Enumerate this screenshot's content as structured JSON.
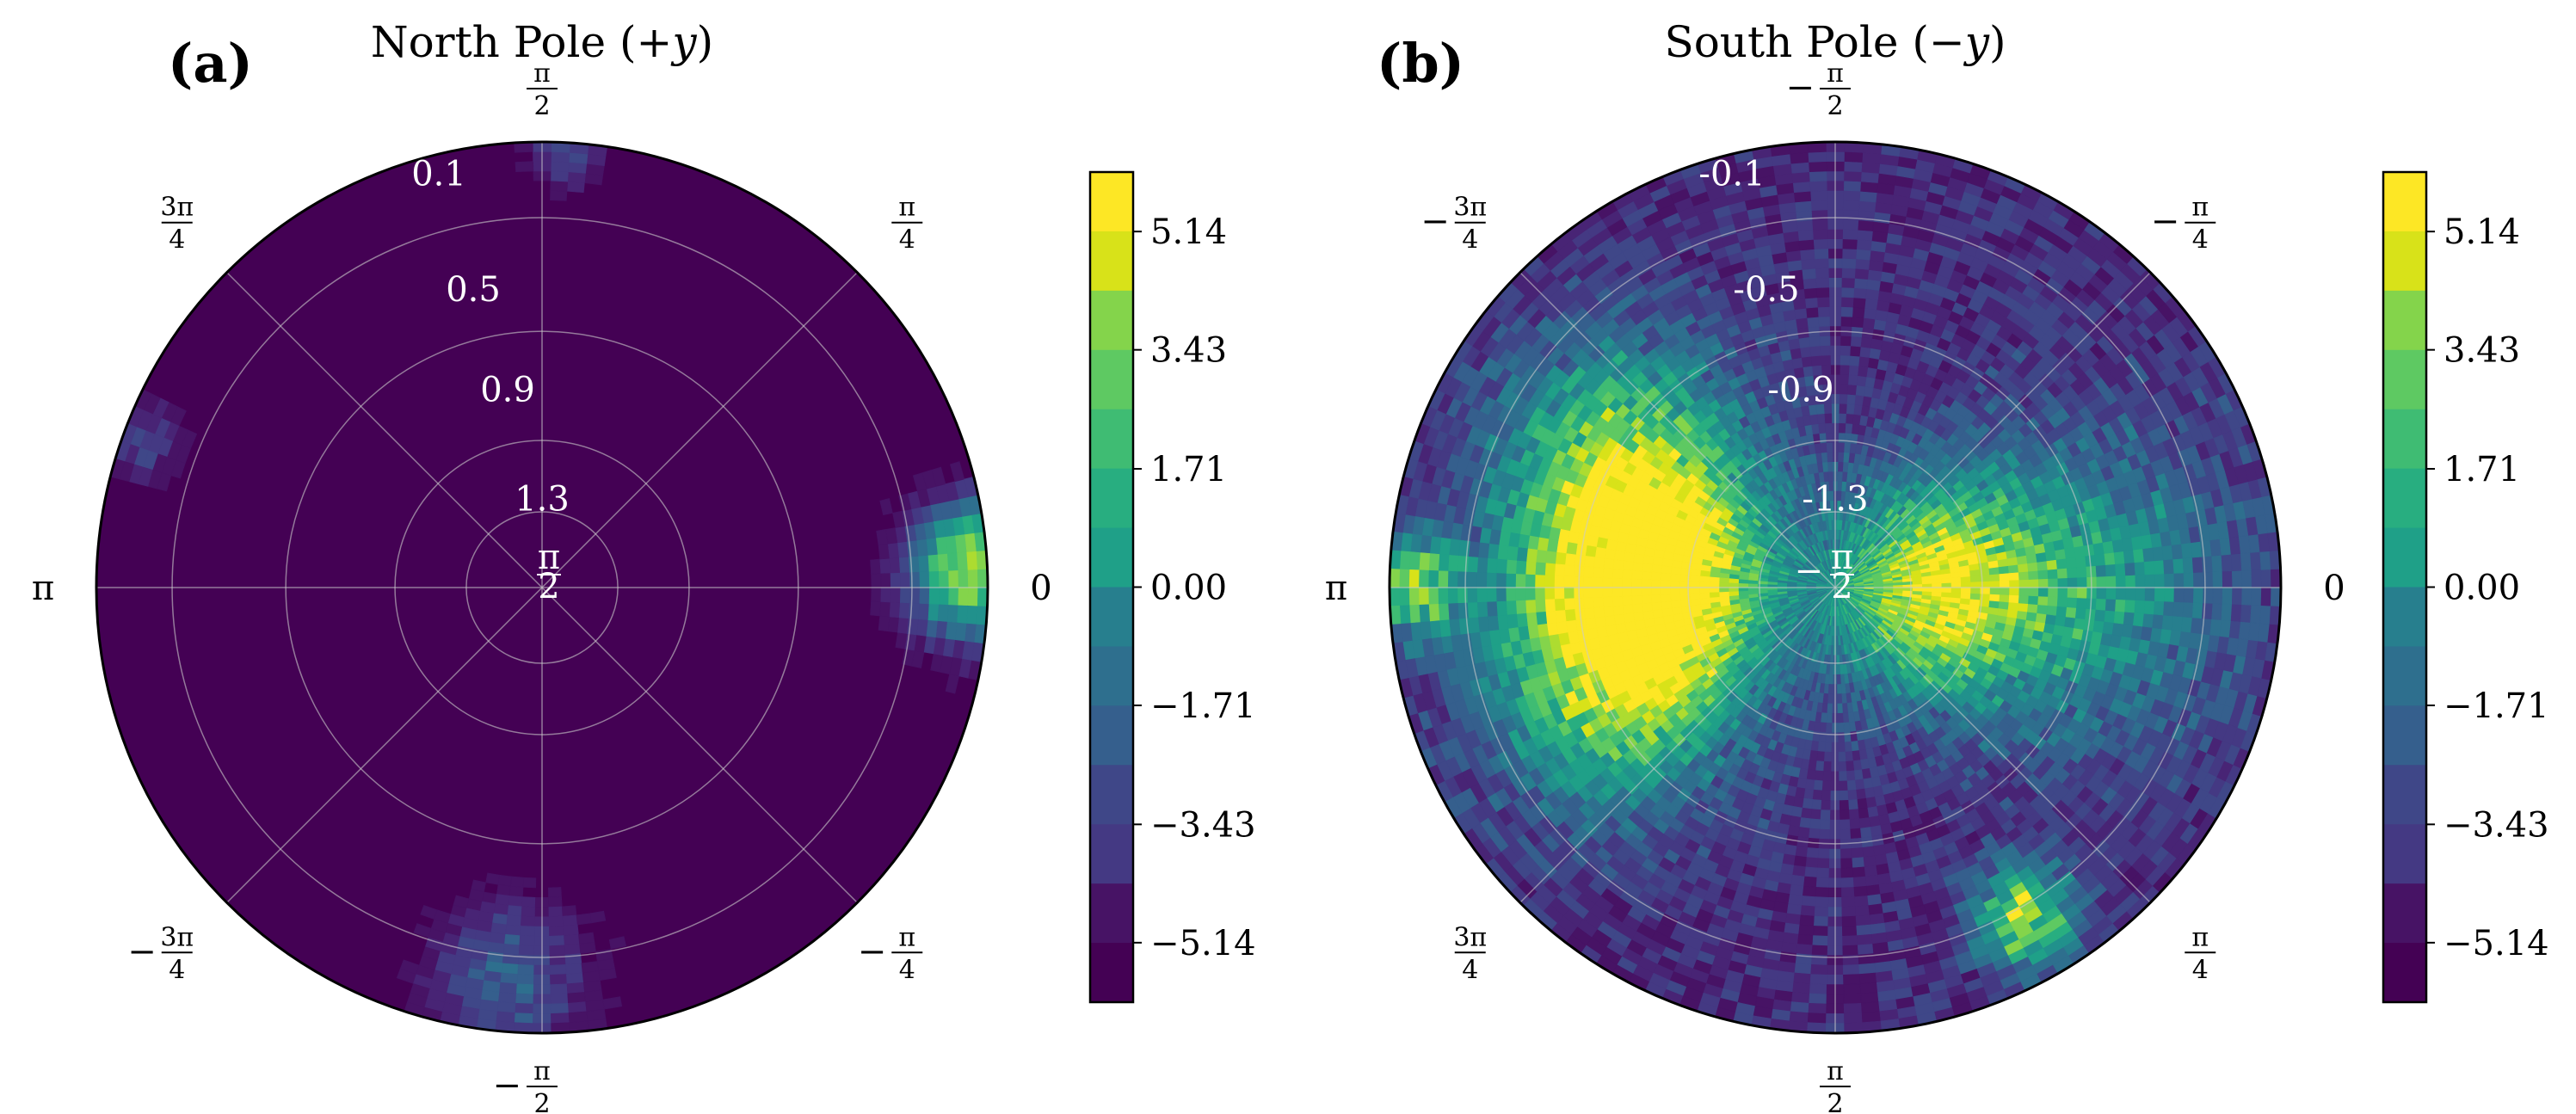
{
  "chart_data": [
    {
      "type": "polar-heatmap",
      "panel_label": "(a)",
      "title": "North Pole (+y)",
      "title_plain": "North Pole (",
      "title_var": "+y",
      "title_close": ")",
      "angle_labels": [
        {
          "angle_deg": 0,
          "kind": "plain",
          "text": "0"
        },
        {
          "angle_deg": 45,
          "kind": "frac",
          "sign": "",
          "num": "π",
          "den": "4"
        },
        {
          "angle_deg": 90,
          "kind": "frac",
          "sign": "",
          "num": "π",
          "den": "2"
        },
        {
          "angle_deg": 135,
          "kind": "frac",
          "sign": "",
          "num": "3π",
          "den": "4"
        },
        {
          "angle_deg": 180,
          "kind": "plain",
          "text": "π"
        },
        {
          "angle_deg": 225,
          "kind": "frac",
          "sign": "−",
          "num": "3π",
          "den": "4"
        },
        {
          "angle_deg": 270,
          "kind": "frac",
          "sign": "−",
          "num": "π",
          "den": "2"
        },
        {
          "angle_deg": 315,
          "kind": "frac",
          "sign": "−",
          "num": "π",
          "den": "4"
        }
      ],
      "center_label": {
        "sign": "",
        "num": "π",
        "den": "2"
      },
      "radial_labels": [
        "0.1",
        "0.5",
        "0.9",
        "1.3"
      ],
      "dominant_value": -6.0,
      "hotspots": [
        {
          "angle_deg": 0,
          "r": 0.95,
          "value": 0.5,
          "spread": 0.1
        },
        {
          "angle_deg": 6,
          "r": 0.97,
          "value": -1.0,
          "spread": 0.08
        },
        {
          "angle_deg": 265,
          "r": 0.88,
          "value": -2.0,
          "spread": 0.12
        },
        {
          "angle_deg": 160,
          "r": 0.95,
          "value": -3.0,
          "spread": 0.06
        },
        {
          "angle_deg": 87,
          "r": 0.98,
          "value": -3.0,
          "spread": 0.06
        }
      ]
    },
    {
      "type": "polar-heatmap",
      "panel_label": "(b)",
      "title": "South Pole (−y)",
      "title_plain": "South Pole (",
      "title_var": "−y",
      "title_close": ")",
      "angle_labels": [
        {
          "angle_deg": 0,
          "kind": "plain",
          "text": "0"
        },
        {
          "angle_deg": 45,
          "kind": "frac",
          "sign": "−",
          "num": "π",
          "den": "4"
        },
        {
          "angle_deg": 90,
          "kind": "frac",
          "sign": "−",
          "num": "π",
          "den": "2"
        },
        {
          "angle_deg": 135,
          "kind": "frac",
          "sign": "−",
          "num": "3π",
          "den": "4"
        },
        {
          "angle_deg": 180,
          "kind": "plain",
          "text": "π"
        },
        {
          "angle_deg": 225,
          "kind": "frac",
          "sign": "",
          "num": "3π",
          "den": "4"
        },
        {
          "angle_deg": 270,
          "kind": "frac",
          "sign": "",
          "num": "π",
          "den": "2"
        },
        {
          "angle_deg": 315,
          "kind": "frac",
          "sign": "",
          "num": "π",
          "den": "4"
        }
      ],
      "center_label": {
        "sign": "−",
        "num": "π",
        "den": "2"
      },
      "radial_labels": [
        "-0.1",
        "-0.5",
        "-0.9",
        "-1.3"
      ],
      "dominant_value": -4.0,
      "hotspots": [
        {
          "angle_deg": 180,
          "r": 0.42,
          "value": 5.5,
          "spread": 0.18
        },
        {
          "angle_deg": 0,
          "r": 0.22,
          "value": 4.0,
          "spread": 0.16
        },
        {
          "angle_deg": 0,
          "r": 0.55,
          "value": 0.5,
          "spread": 0.25
        },
        {
          "angle_deg": 150,
          "r": 0.55,
          "value": 2.5,
          "spread": 0.2
        },
        {
          "angle_deg": 205,
          "r": 0.55,
          "value": 2.0,
          "spread": 0.2
        },
        {
          "angle_deg": 300,
          "r": 0.85,
          "value": 4.0,
          "spread": 0.08
        },
        {
          "angle_deg": 180,
          "r": 0.95,
          "value": 3.0,
          "spread": 0.08
        }
      ]
    }
  ],
  "colorbar": {
    "ticks": [
      "5.14",
      "3.43",
      "1.71",
      "0.00",
      "−1.71",
      "−3.43",
      "−5.14"
    ],
    "tick_values": [
      5.14,
      3.43,
      1.71,
      0.0,
      -1.71,
      -3.43,
      -5.14
    ],
    "vmin": -6.0,
    "vmax": 6.0,
    "levels": 14,
    "palette": [
      "#440154",
      "#471365",
      "#482475",
      "#443983",
      "#3f4788",
      "#355f8d",
      "#2e6f8e",
      "#277f8e",
      "#21918c",
      "#1fa088",
      "#28ae80",
      "#3fbc73",
      "#5ec962",
      "#84d44b",
      "#addc30",
      "#d8e219",
      "#fde725"
    ]
  }
}
